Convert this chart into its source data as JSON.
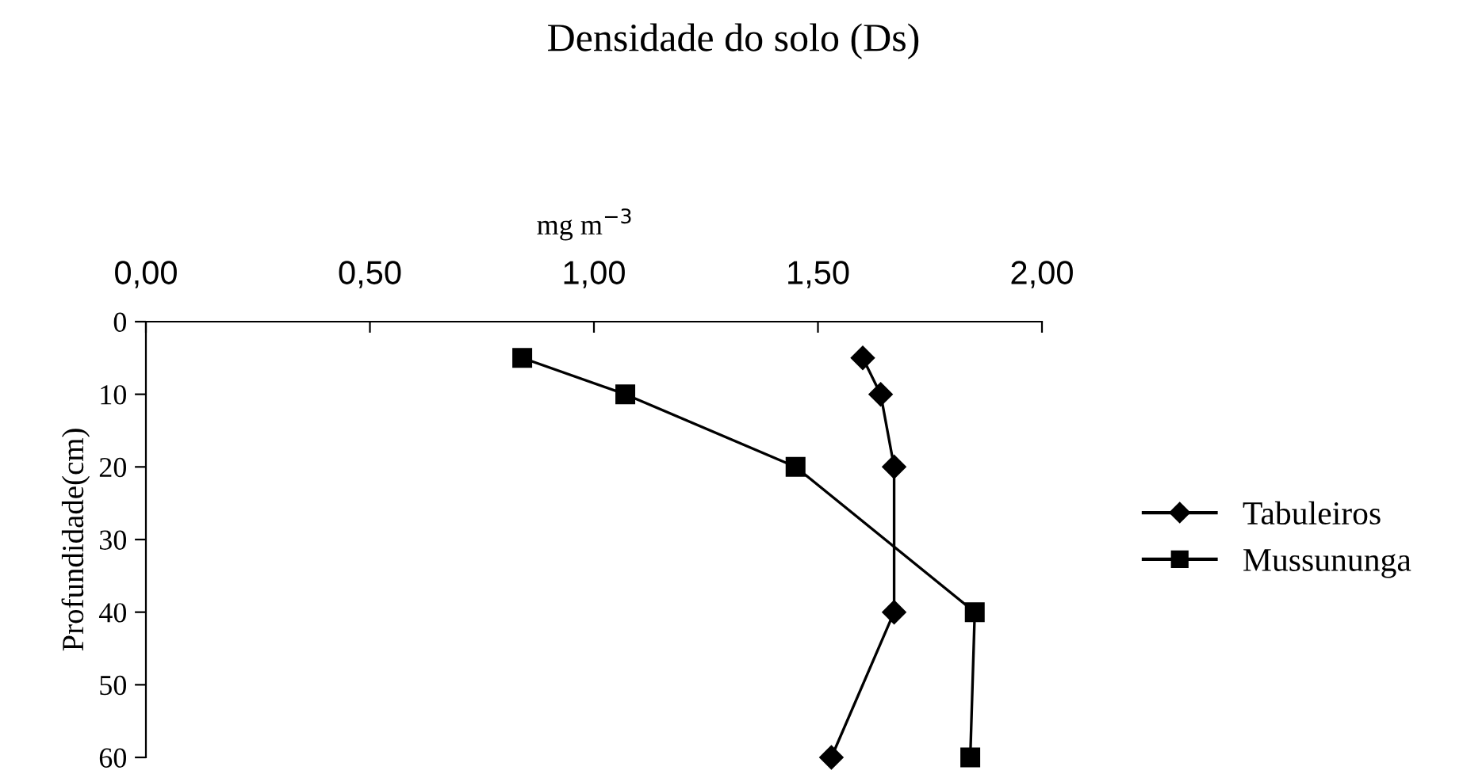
{
  "chart_data": {
    "type": "line",
    "title": "Densidade do solo (Ds)",
    "xlabel": "mg m$^{−3}$",
    "ylabel": "Profundidade(cm)",
    "series": [
      {
        "name": "Tabuleiros",
        "color": "#000000",
        "marker": "diamond",
        "x": [
          1.6,
          1.64,
          1.67,
          1.67,
          1.53
        ],
        "values": [
          5,
          10,
          20,
          40,
          60
        ]
      },
      {
        "name": "Mussununga",
        "color": "#000000",
        "marker": "square",
        "x": [
          0.84,
          1.07,
          1.45,
          1.85,
          1.84
        ],
        "values": [
          5,
          10,
          20,
          40,
          60
        ]
      }
    ],
    "xlim": [
      0,
      2
    ],
    "xticks": [
      {
        "value": 0,
        "label": "0,00"
      },
      {
        "value": 0.5,
        "label": "0,50"
      },
      {
        "value": 1,
        "label": "1,00"
      },
      {
        "value": 1.5,
        "label": "1,50"
      },
      {
        "value": 2,
        "label": "2,00"
      }
    ],
    "ylim": [
      60,
      0
    ],
    "yticks": [
      0,
      10,
      20,
      30,
      40,
      50,
      60
    ],
    "grid": false,
    "legend": "right",
    "line_style": "solid"
  }
}
